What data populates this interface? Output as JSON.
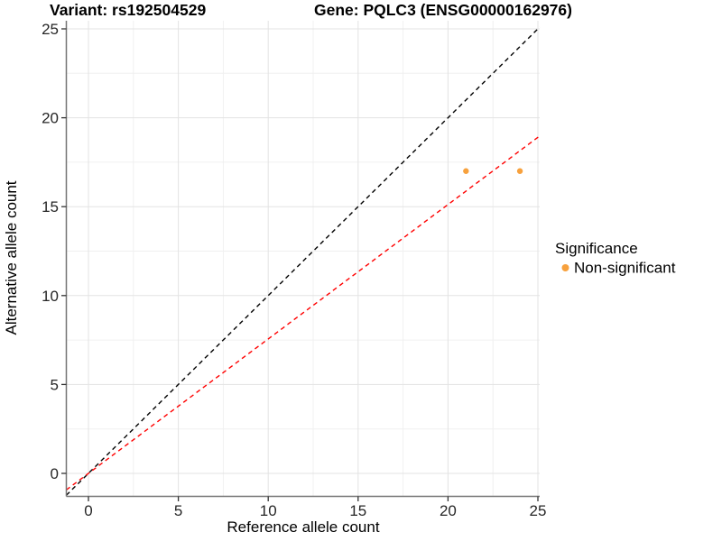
{
  "chart_data": {
    "type": "scatter",
    "title_left": "Variant: rs192504529",
    "title_right": "Gene: PQLC3 (ENSG00000162976)",
    "xlabel": "Reference allele count",
    "ylabel": "Alternative allele count",
    "xlim": [
      -1.25,
      25.1
    ],
    "ylim": [
      -1.29,
      25.45
    ],
    "x_ticks": [
      0,
      5,
      10,
      15,
      20,
      25
    ],
    "y_ticks": [
      0,
      5,
      10,
      15,
      20,
      25
    ],
    "x_minor_ticks": [
      2.5,
      7.5,
      12.5,
      17.5,
      22.5
    ],
    "y_minor_ticks": [
      2.5,
      7.5,
      12.5,
      17.5,
      22.5
    ],
    "grid": true,
    "points": [
      {
        "x": 21,
        "y": 17,
        "series": "Non-significant"
      },
      {
        "x": 24,
        "y": 17,
        "series": "Non-significant"
      }
    ],
    "series": [
      {
        "name": "Non-significant",
        "color": "#F7A13D"
      }
    ],
    "reference_lines": [
      {
        "name": "identity-line",
        "slope": 1,
        "intercept": 0,
        "color": "#000000",
        "dash": "dashed"
      },
      {
        "name": "allelic-ratio-line",
        "slope": 0.756,
        "intercept": 0,
        "color": "#FF0000",
        "dash": "dashed"
      }
    ]
  },
  "legend": {
    "title": "Significance",
    "position": "right",
    "items": [
      {
        "label": "Non-significant",
        "color": "#F7A13D"
      }
    ]
  }
}
